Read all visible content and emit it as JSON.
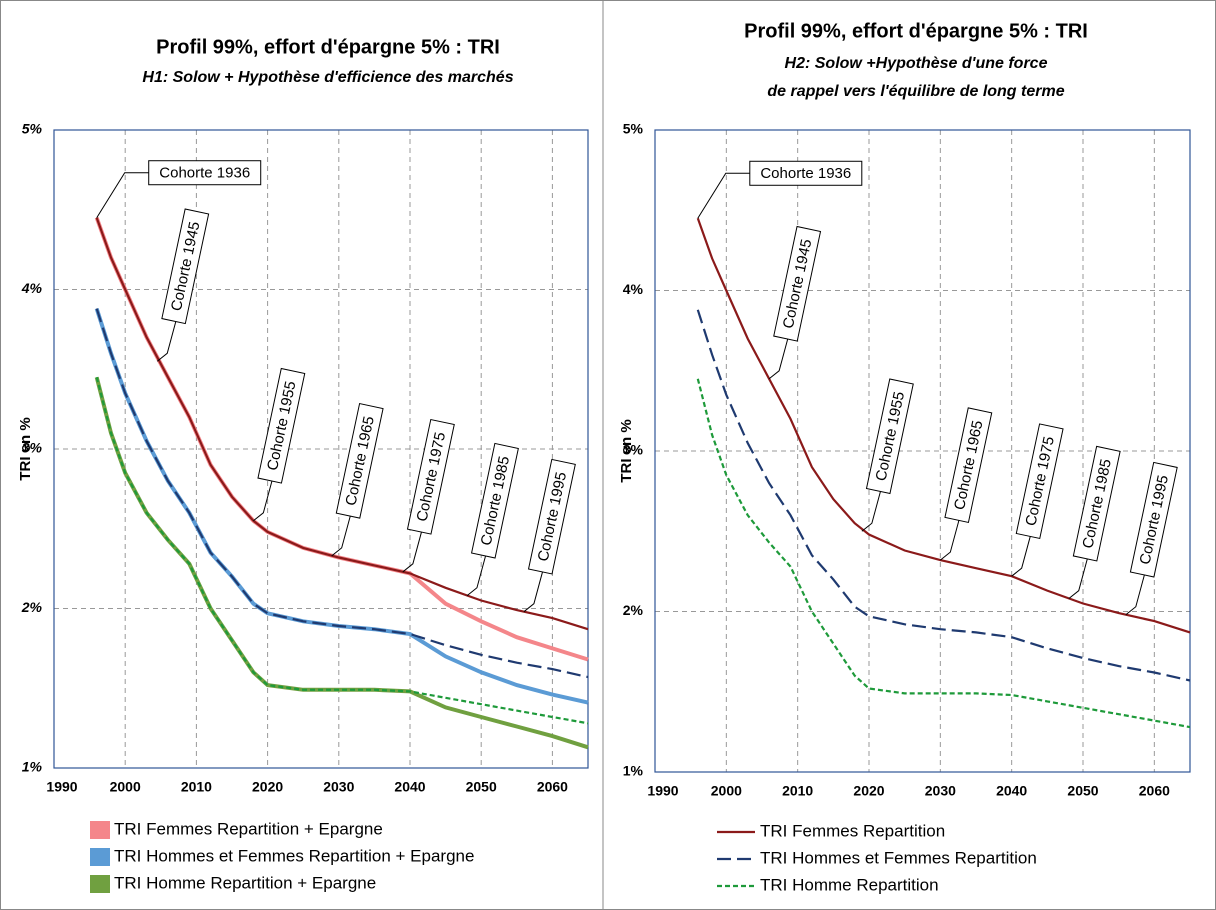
{
  "chart_data": [
    {
      "type": "line",
      "title": "Profil 99%, effort d'épargne 5% : TRI",
      "subtitle": [
        "H1: Solow + Hypothèse d'efficience des marchés"
      ],
      "ylabel": "TRI en %",
      "xlim": [
        1990,
        2065
      ],
      "xticks": [
        1990,
        2000,
        2010,
        2020,
        2030,
        2040,
        2050,
        2060
      ],
      "ylim": [
        1,
        5
      ],
      "yticks": [
        {
          "value": 1,
          "label": "1%"
        },
        {
          "value": 2,
          "label": "2%"
        },
        {
          "value": 3,
          "label": "3%"
        },
        {
          "value": 4,
          "label": "4%"
        },
        {
          "value": 5,
          "label": "5%"
        }
      ],
      "grid": true,
      "x": [
        1996,
        1998,
        2000,
        2003,
        2006,
        2009,
        2012,
        2015,
        2018,
        2020,
        2025,
        2030,
        2035,
        2040,
        2045,
        2050,
        2055,
        2060,
        2065
      ],
      "series": [
        {
          "name": "TRI Femmes Repartition + Epargne",
          "color": "#f4868a",
          "style": "band",
          "values": [
            4.45,
            4.2,
            4.0,
            3.7,
            3.45,
            3.2,
            2.9,
            2.7,
            2.55,
            2.48,
            2.38,
            2.32,
            2.27,
            2.22,
            2.03,
            1.92,
            1.82,
            1.75,
            1.68
          ]
        },
        {
          "name": "TRI Hommes et Femmes Repartition + Epargne",
          "color": "#5b9bd5",
          "style": "band",
          "values": [
            3.88,
            3.6,
            3.35,
            3.05,
            2.8,
            2.6,
            2.35,
            2.2,
            2.03,
            1.97,
            1.92,
            1.89,
            1.87,
            1.84,
            1.7,
            1.6,
            1.52,
            1.46,
            1.41
          ]
        },
        {
          "name": "TRI Homme Repartition + Epargne",
          "color": "#70a040",
          "style": "band",
          "values": [
            3.45,
            3.1,
            2.85,
            2.6,
            2.43,
            2.28,
            2.0,
            1.8,
            1.6,
            1.52,
            1.49,
            1.49,
            1.49,
            1.48,
            1.38,
            1.32,
            1.26,
            1.2,
            1.13
          ]
        },
        {
          "color": "#8b1a1a",
          "style": "solid",
          "values": [
            4.45,
            4.2,
            4.0,
            3.7,
            3.45,
            3.2,
            2.9,
            2.7,
            2.55,
            2.48,
            2.38,
            2.32,
            2.27,
            2.22,
            2.13,
            2.05,
            1.99,
            1.94,
            1.87
          ]
        },
        {
          "color": "#1f3a70",
          "style": "dashed",
          "values": [
            3.88,
            3.6,
            3.35,
            3.05,
            2.8,
            2.6,
            2.35,
            2.2,
            2.03,
            1.97,
            1.92,
            1.89,
            1.87,
            1.84,
            1.77,
            1.71,
            1.66,
            1.62,
            1.57
          ]
        },
        {
          "color": "#1e9a3a",
          "style": "dotted",
          "values": [
            3.45,
            3.1,
            2.85,
            2.6,
            2.43,
            2.28,
            2.0,
            1.8,
            1.6,
            1.52,
            1.49,
            1.49,
            1.49,
            1.48,
            1.44,
            1.4,
            1.36,
            1.32,
            1.28
          ]
        }
      ],
      "annotations": [
        {
          "text": "Cohorte 1936",
          "x": 1996,
          "y": 4.45
        },
        {
          "text": "Cohorte 1945",
          "x": 2004.5,
          "y": 3.55
        },
        {
          "text": "Cohorte 1955",
          "x": 2018,
          "y": 2.55
        },
        {
          "text": "Cohorte 1965",
          "x": 2029,
          "y": 2.33
        },
        {
          "text": "Cohorte 1975",
          "x": 2039,
          "y": 2.23
        },
        {
          "text": "Cohorte 1985",
          "x": 2048,
          "y": 2.08
        },
        {
          "text": "Cohorte 1995",
          "x": 2056,
          "y": 1.98
        }
      ]
    },
    {
      "type": "line",
      "title": "Profil 99%, effort d'épargne 5% : TRI",
      "subtitle": [
        "H2: Solow +Hypothèse d'une force",
        "de rappel vers l'équilibre de long terme"
      ],
      "ylabel": "TRI en %",
      "xlim": [
        1990,
        2065
      ],
      "xticks": [
        1990,
        2000,
        2010,
        2020,
        2030,
        2040,
        2050,
        2060
      ],
      "ylim": [
        1,
        5
      ],
      "yticks": [
        {
          "value": 1,
          "label": "1%"
        },
        {
          "value": 2,
          "label": "2%"
        },
        {
          "value": 3,
          "label": "3%"
        },
        {
          "value": 4,
          "label": "4%"
        },
        {
          "value": 5,
          "label": "5%"
        }
      ],
      "grid": true,
      "x": [
        1996,
        1998,
        2000,
        2003,
        2006,
        2009,
        2012,
        2015,
        2018,
        2020,
        2025,
        2030,
        2035,
        2040,
        2045,
        2050,
        2055,
        2060,
        2065
      ],
      "series": [
        {
          "name": "TRI Femmes Repartition",
          "color": "#8b1a1a",
          "style": "solid",
          "values": [
            4.45,
            4.2,
            4.0,
            3.7,
            3.45,
            3.2,
            2.9,
            2.7,
            2.55,
            2.48,
            2.38,
            2.32,
            2.27,
            2.22,
            2.13,
            2.05,
            1.99,
            1.94,
            1.87
          ]
        },
        {
          "name": "TRI Hommes et Femmes Repartition",
          "color": "#1f3a70",
          "style": "dashed",
          "values": [
            3.88,
            3.6,
            3.35,
            3.05,
            2.8,
            2.6,
            2.35,
            2.2,
            2.03,
            1.97,
            1.92,
            1.89,
            1.87,
            1.84,
            1.77,
            1.71,
            1.66,
            1.62,
            1.57
          ]
        },
        {
          "name": "TRI Homme Repartition",
          "color": "#1e9a3a",
          "style": "dotted",
          "values": [
            3.45,
            3.1,
            2.85,
            2.6,
            2.43,
            2.28,
            2.0,
            1.8,
            1.6,
            1.52,
            1.49,
            1.49,
            1.49,
            1.48,
            1.44,
            1.4,
            1.36,
            1.32,
            1.28
          ]
        }
      ],
      "annotations": [
        {
          "text": "Cohorte 1936",
          "x": 1996,
          "y": 4.45
        },
        {
          "text": "Cohorte 1945",
          "x": 2006,
          "y": 3.45
        },
        {
          "text": "Cohorte 1955",
          "x": 2019,
          "y": 2.5
        },
        {
          "text": "Cohorte 1965",
          "x": 2030,
          "y": 2.32
        },
        {
          "text": "Cohorte 1975",
          "x": 2040,
          "y": 2.22
        },
        {
          "text": "Cohorte 1985",
          "x": 2048,
          "y": 2.08
        },
        {
          "text": "Cohorte 1995",
          "x": 2056,
          "y": 1.98
        }
      ]
    }
  ]
}
